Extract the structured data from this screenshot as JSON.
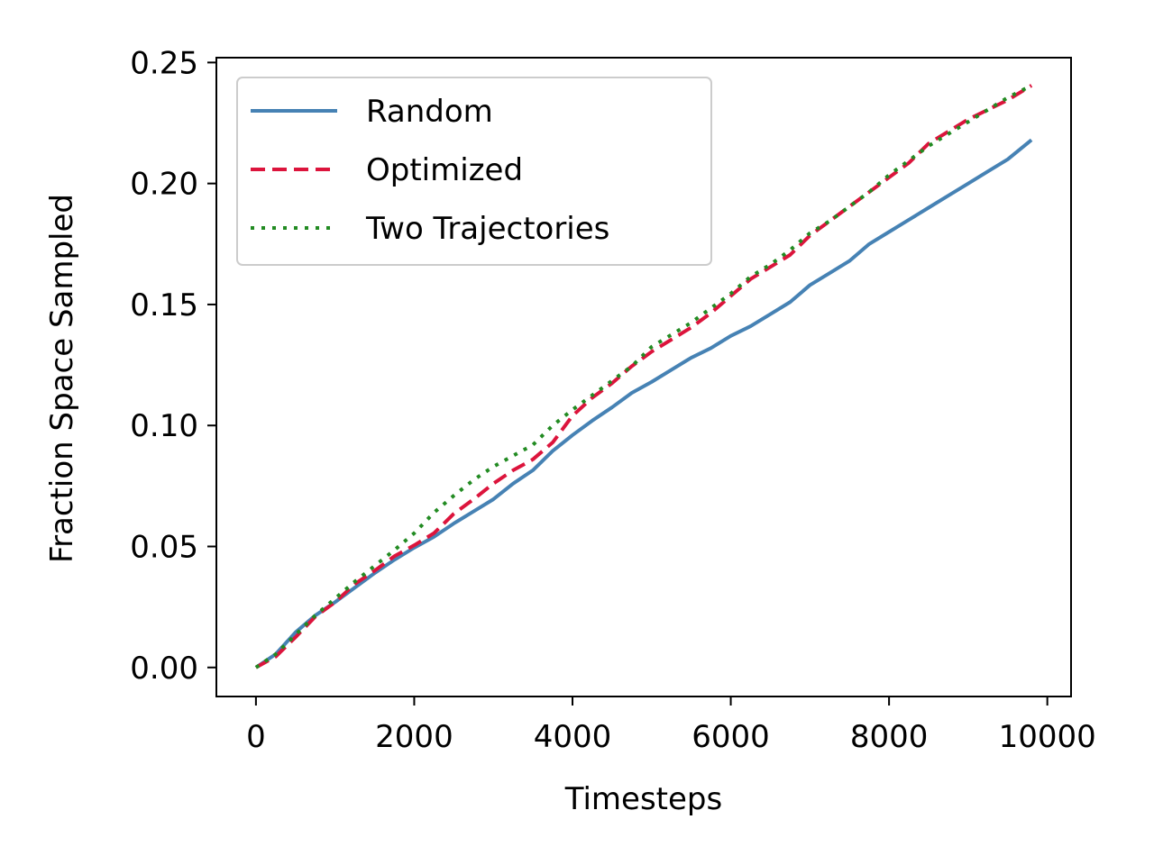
{
  "chart_data": {
    "type": "line",
    "title": "",
    "xlabel": "Timesteps",
    "ylabel": "Fraction Space Sampled",
    "xlim": [
      -500,
      10300
    ],
    "ylim": [
      -0.012,
      0.252
    ],
    "xticks": [
      0,
      2000,
      4000,
      6000,
      8000,
      10000
    ],
    "xtick_labels": [
      "0",
      "2000",
      "4000",
      "6000",
      "8000",
      "10000"
    ],
    "yticks": [
      0.0,
      0.05,
      0.1,
      0.15,
      0.2,
      0.25
    ],
    "ytick_labels": [
      "0.00",
      "0.05",
      "0.10",
      "0.15",
      "0.20",
      "0.25"
    ],
    "grid": false,
    "legend": {
      "placement": "upper-left"
    },
    "x": [
      0,
      250,
      500,
      750,
      1000,
      1250,
      1500,
      1750,
      2000,
      2250,
      2500,
      2750,
      3000,
      3250,
      3500,
      3750,
      4000,
      4250,
      4500,
      4750,
      5000,
      5250,
      5500,
      5750,
      6000,
      6250,
      6500,
      6750,
      7000,
      7250,
      7500,
      7750,
      8000,
      8250,
      8500,
      8750,
      9000,
      9250,
      9500,
      9800
    ],
    "series": [
      {
        "name": "Random",
        "color": "#4682b4",
        "style": "solid",
        "values": [
          0.0,
          0.0055,
          0.0145,
          0.0215,
          0.027,
          0.033,
          0.039,
          0.0445,
          0.0495,
          0.054,
          0.0595,
          0.0645,
          0.0695,
          0.076,
          0.0815,
          0.0895,
          0.096,
          0.102,
          0.1075,
          0.1135,
          0.118,
          0.123,
          0.128,
          0.132,
          0.137,
          0.141,
          0.146,
          0.151,
          0.158,
          0.163,
          0.168,
          0.175,
          0.18,
          0.185,
          0.19,
          0.195,
          0.2,
          0.205,
          0.21,
          0.218
        ]
      },
      {
        "name": "Optimized",
        "color": "#dc143c",
        "style": "dashed",
        "values": [
          0.0,
          0.0045,
          0.0125,
          0.021,
          0.027,
          0.0345,
          0.04,
          0.046,
          0.0505,
          0.0555,
          0.0635,
          0.0695,
          0.076,
          0.0815,
          0.086,
          0.093,
          0.104,
          0.1115,
          0.1175,
          0.1245,
          0.1305,
          0.1355,
          0.1405,
          0.1465,
          0.1535,
          0.1605,
          0.1655,
          0.1705,
          0.1785,
          0.1845,
          0.1905,
          0.1965,
          0.2025,
          0.2085,
          0.2165,
          0.2215,
          0.2265,
          0.2305,
          0.2345,
          0.2405
        ]
      },
      {
        "name": "Two Trajectories",
        "color": "#228b22",
        "style": "dotted",
        "values": [
          0.0,
          0.0055,
          0.0135,
          0.0215,
          0.0285,
          0.0355,
          0.042,
          0.0485,
          0.0555,
          0.064,
          0.071,
          0.0775,
          0.083,
          0.0875,
          0.092,
          0.1,
          0.1065,
          0.1125,
          0.1185,
          0.1245,
          0.1325,
          0.1375,
          0.1425,
          0.1485,
          0.1545,
          0.1615,
          0.1665,
          0.1725,
          0.1795,
          0.1845,
          0.1905,
          0.1965,
          0.2035,
          0.2095,
          0.2155,
          0.2205,
          0.2255,
          0.2305,
          0.2355,
          0.2405
        ]
      }
    ]
  }
}
